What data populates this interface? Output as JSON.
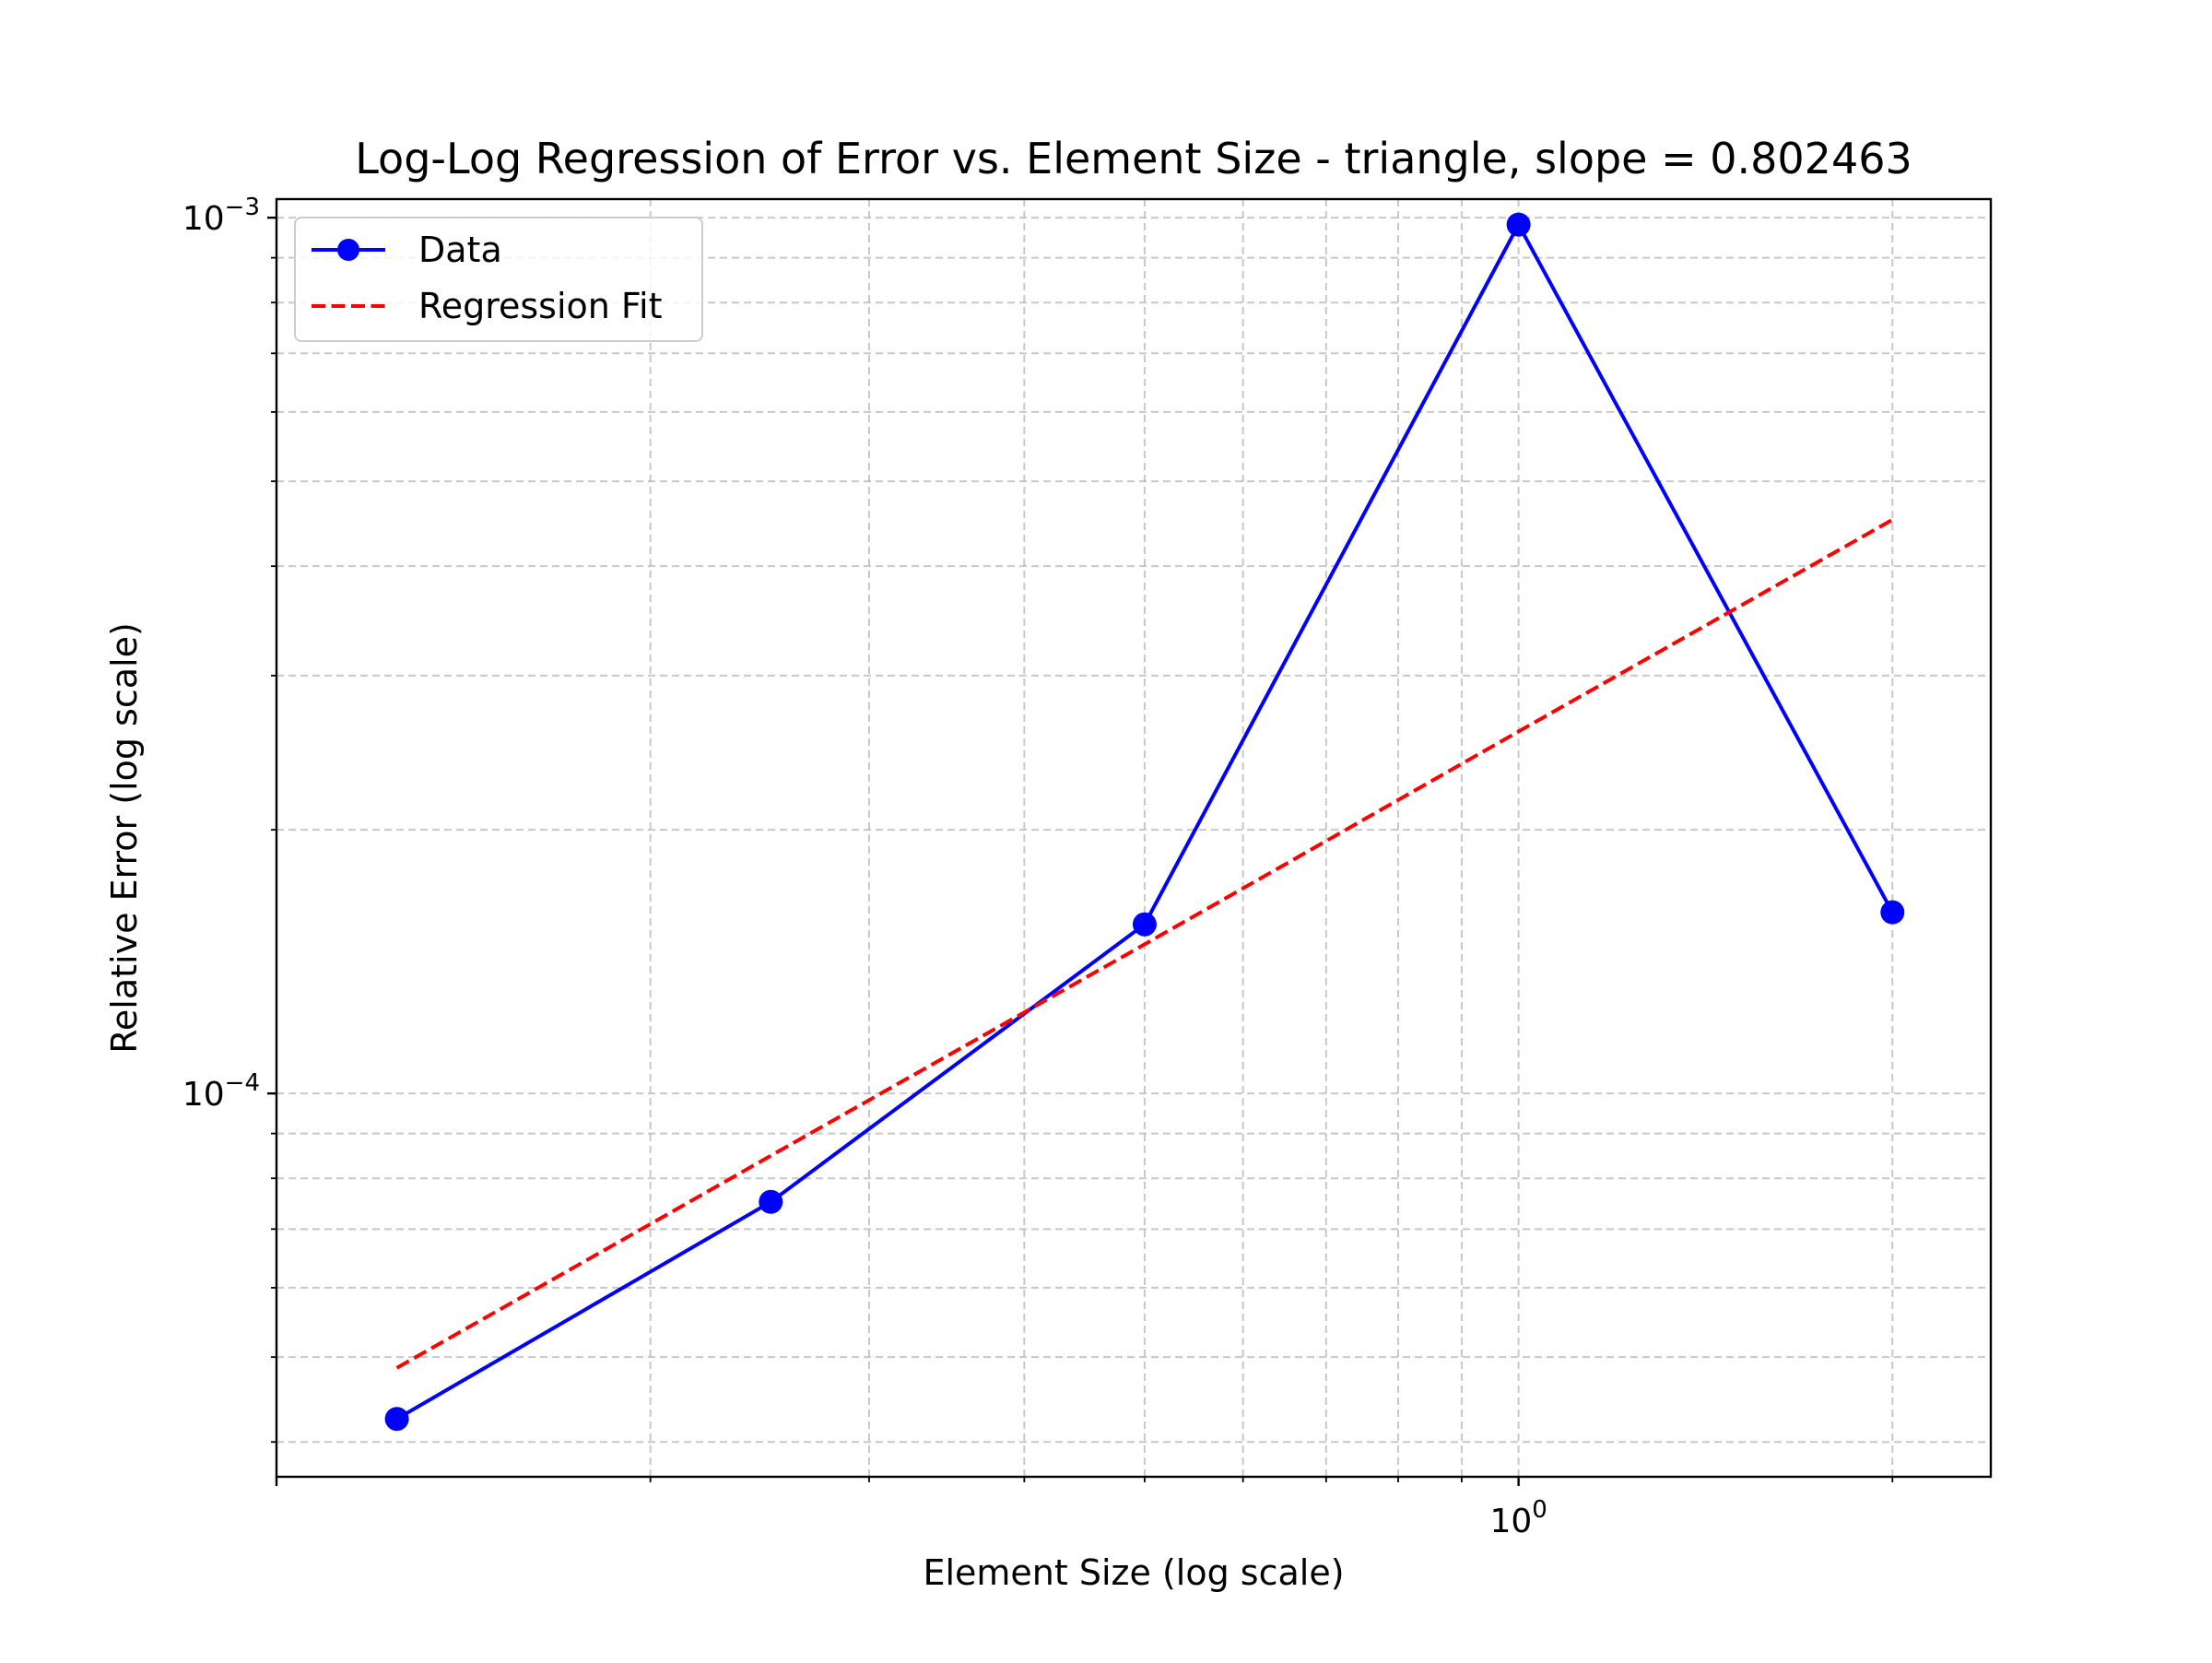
{
  "chart_data": {
    "type": "line",
    "title": "Log-Log Regression of Error vs. Element Size - triangle, slope = 0.802463",
    "xlabel": "Element Size (log scale)",
    "ylabel": "Relative Error (log scale)",
    "x_scale": "log",
    "y_scale": "log",
    "xlim": [
      0.1,
      2.4
    ],
    "ylim": [
      3.65e-05,
      0.00105
    ],
    "x_major_ticks": [
      1
    ],
    "x_tick_labels": [
      {
        "base": "10",
        "exp": "0"
      }
    ],
    "y_major_ticks": [
      0.0001,
      0.001
    ],
    "y_tick_labels": [
      {
        "base": "10",
        "exp": "−4"
      },
      {
        "base": "10",
        "exp": "−3"
      }
    ],
    "grid": true,
    "grid_style": "dashed",
    "legend": {
      "position": "upper-left",
      "entries": [
        {
          "label": "Data",
          "style": "line-marker",
          "color": "#0000ff"
        },
        {
          "label": "Regression Fit",
          "style": "dashed",
          "color": "#ff0000"
        }
      ]
    },
    "series": [
      {
        "name": "Data",
        "color": "#0000ff",
        "style": "solid",
        "marker": "circle",
        "x": [
          0.125,
          0.25,
          0.5,
          1.0,
          2.0
        ],
        "y": [
          4.25e-05,
          7.52e-05,
          0.000156,
          0.000982,
          0.000161
        ]
      },
      {
        "name": "Regression Fit",
        "color": "#ff0000",
        "style": "dashed",
        "marker": "none",
        "x": [
          0.125,
          0.25,
          0.5,
          1.0,
          2.0
        ],
        "y": [
          4.86e-05,
          8.49e-05,
          0.000148,
          0.000259,
          0.000452
        ]
      }
    ]
  }
}
